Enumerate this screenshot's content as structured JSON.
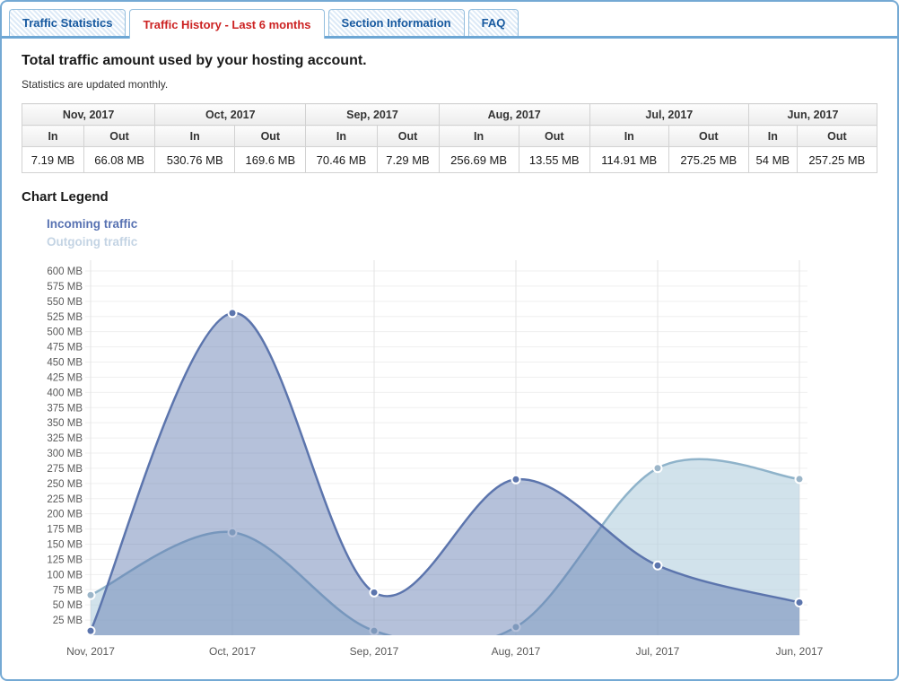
{
  "tabs": [
    {
      "label": "Traffic Statistics",
      "active": false
    },
    {
      "label": "Traffic History - Last 6 months",
      "active": true
    },
    {
      "label": "Section Information",
      "active": false
    },
    {
      "label": "FAQ",
      "active": false
    }
  ],
  "header": {
    "title": "Total traffic amount used by your hosting account.",
    "subtitle": "Statistics are updated monthly."
  },
  "table": {
    "in_label": "In",
    "out_label": "Out",
    "months": [
      {
        "label": "Nov, 2017",
        "in": "7.19 MB",
        "out": "66.08 MB"
      },
      {
        "label": "Oct, 2017",
        "in": "530.76 MB",
        "out": "169.6 MB"
      },
      {
        "label": "Sep, 2017",
        "in": "70.46 MB",
        "out": "7.29 MB"
      },
      {
        "label": "Aug, 2017",
        "in": "256.69 MB",
        "out": "13.55 MB"
      },
      {
        "label": "Jul, 2017",
        "in": "114.91 MB",
        "out": "275.25 MB"
      },
      {
        "label": "Jun, 2017",
        "in": "54 MB",
        "out": "257.25 MB"
      }
    ]
  },
  "legend": {
    "title": "Chart Legend",
    "items": [
      {
        "label": "Incoming traffic",
        "color": "#5872b2"
      },
      {
        "label": "Outgoing traffic",
        "color": "#c4d4e4"
      }
    ]
  },
  "chart_data": {
    "type": "area",
    "x": [
      "Nov, 2017",
      "Oct, 2017",
      "Sep, 2017",
      "Aug, 2017",
      "Jul, 2017",
      "Jun, 2017"
    ],
    "series": [
      {
        "name": "Outgoing traffic",
        "values": [
          66.08,
          169.6,
          7.29,
          13.55,
          275.25,
          257.25
        ],
        "line_color": "#8fb3ca",
        "fill_color": "rgba(178,207,221,0.60)",
        "marker_color": "#9cb6c9"
      },
      {
        "name": "Incoming traffic",
        "values": [
          7.19,
          530.76,
          70.46,
          256.69,
          114.91,
          54
        ],
        "line_color": "#5c75ad",
        "fill_color": "rgba(92,117,173,0.45)",
        "marker_color": "#5c75ad"
      }
    ],
    "ylim": [
      0,
      600
    ],
    "ytick_step": 25,
    "ytick_suffix": " MB",
    "grid": true,
    "grid_color_h": "#efefef",
    "grid_color_v": "#e3e3e3",
    "legend_position": "top-left-outside",
    "curve": "spline"
  }
}
